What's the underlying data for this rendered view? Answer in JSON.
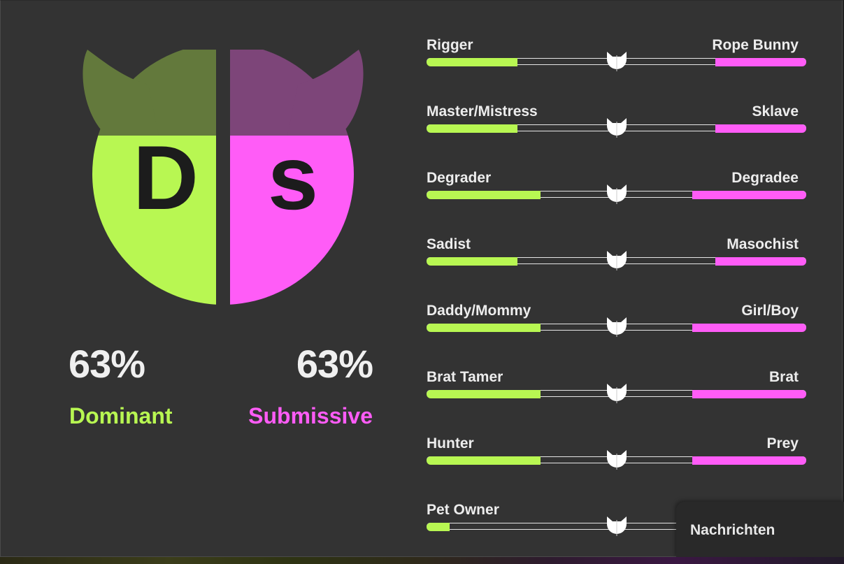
{
  "logo": {
    "letter_left": "D",
    "letter_right": "s",
    "colors": {
      "dom_body": "#b8f752",
      "dom_horn": "#63793c",
      "sub_body": "#ff5cf7",
      "sub_horn": "#7d4579",
      "letter": "#1c1c1c"
    }
  },
  "summary": {
    "dominant_percent": "63%",
    "dominant_label": "Dominant",
    "submissive_percent": "63%",
    "submissive_label": "Submissive"
  },
  "traits": [
    {
      "left": "Rigger",
      "right": "Rope Bunny",
      "left_fill": 0.24,
      "right_fill": 0.24,
      "knob": 0.5
    },
    {
      "left": "Master/Mistress",
      "right": "Sklave",
      "left_fill": 0.24,
      "right_fill": 0.24,
      "knob": 0.5
    },
    {
      "left": "Degrader",
      "right": "Degradee",
      "left_fill": 0.3,
      "right_fill": 0.3,
      "knob": 0.5
    },
    {
      "left": "Sadist",
      "right": "Masochist",
      "left_fill": 0.24,
      "right_fill": 0.24,
      "knob": 0.5
    },
    {
      "left": "Daddy/Mommy",
      "right": "Girl/Boy",
      "left_fill": 0.3,
      "right_fill": 0.3,
      "knob": 0.5
    },
    {
      "left": "Brat Tamer",
      "right": "Brat",
      "left_fill": 0.3,
      "right_fill": 0.3,
      "knob": 0.5
    },
    {
      "left": "Hunter",
      "right": "Prey",
      "left_fill": 0.3,
      "right_fill": 0.3,
      "knob": 0.5
    },
    {
      "left": "Pet Owner",
      "right": "",
      "left_fill": 0.06,
      "right_fill": 0.0,
      "knob": 0.5
    }
  ],
  "chat": {
    "label": "Nachrichten"
  }
}
